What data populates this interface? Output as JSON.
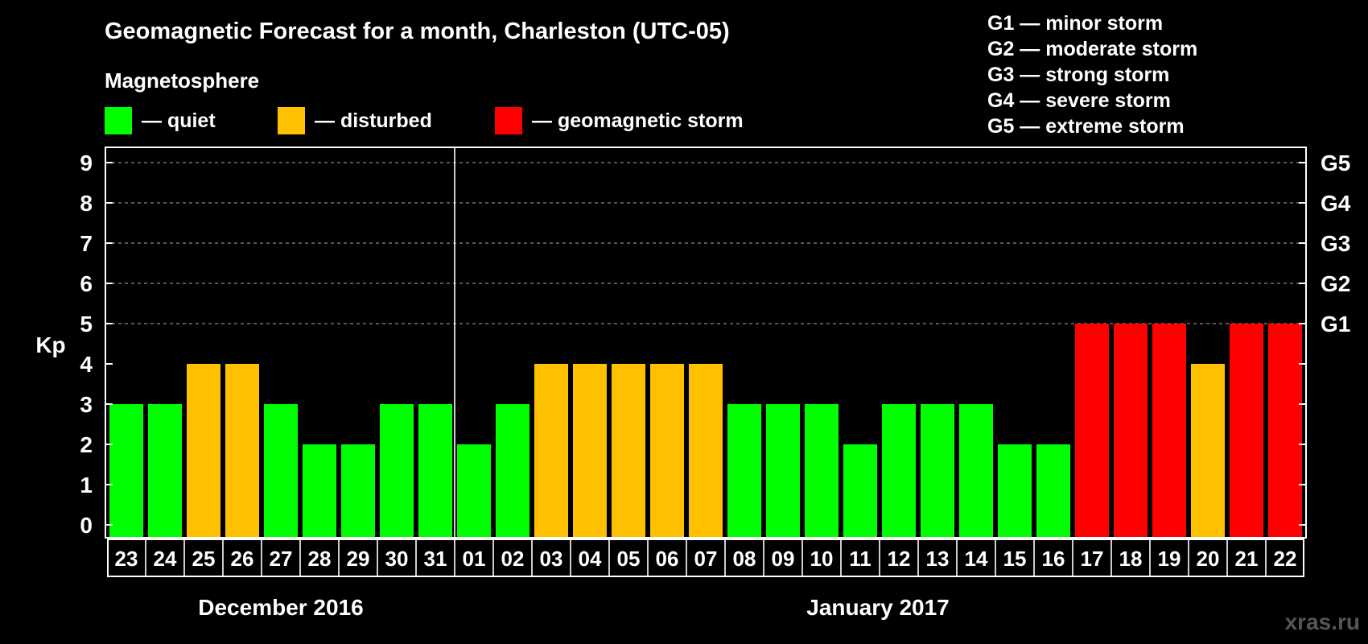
{
  "watermark": "xras.ru",
  "chart_data": {
    "type": "bar",
    "title": "Geomagnetic Forecast for a month, Charleston (UTC-05)",
    "subtitle": "Magnetosphere",
    "ylabel": "Kp",
    "ylim": [
      0,
      9
    ],
    "yticks": [
      "0",
      "1",
      "2",
      "3",
      "4",
      "5",
      "6",
      "7",
      "8",
      "9"
    ],
    "grid": true,
    "status_legend": [
      {
        "key": "quiet",
        "label": "— quiet",
        "color": "#00ff00"
      },
      {
        "key": "disturbed",
        "label": "— disturbed",
        "color": "#ffc000"
      },
      {
        "key": "storm",
        "label": "— geomagnetic storm",
        "color": "#ff0000"
      }
    ],
    "storm_levels": [
      {
        "label": "G5",
        "kp": 9,
        "description": "G5 — extreme storm"
      },
      {
        "label": "G4",
        "kp": 8,
        "description": "G4 — severe storm"
      },
      {
        "label": "G3",
        "kp": 7,
        "description": "G3 — strong storm"
      },
      {
        "label": "G2",
        "kp": 6,
        "description": "G2 — moderate storm"
      },
      {
        "label": "G1",
        "kp": 5,
        "description": "G1 — minor storm"
      }
    ],
    "months": [
      {
        "label": "December 2016",
        "first_index": 0,
        "last_index": 8
      },
      {
        "label": "January 2017",
        "first_index": 9,
        "last_index": 30
      }
    ],
    "categories": [
      "23",
      "24",
      "25",
      "26",
      "27",
      "28",
      "29",
      "30",
      "31",
      "01",
      "02",
      "03",
      "04",
      "05",
      "06",
      "07",
      "08",
      "09",
      "10",
      "11",
      "12",
      "13",
      "14",
      "15",
      "16",
      "17",
      "18",
      "19",
      "20",
      "21",
      "22"
    ],
    "values": [
      3,
      3,
      4,
      4,
      3,
      2,
      2,
      3,
      3,
      2,
      3,
      4,
      4,
      4,
      4,
      4,
      3,
      3,
      3,
      2,
      3,
      3,
      3,
      2,
      2,
      5,
      5,
      5,
      4,
      5,
      5
    ],
    "status": [
      "quiet",
      "quiet",
      "disturbed",
      "disturbed",
      "quiet",
      "quiet",
      "quiet",
      "quiet",
      "quiet",
      "quiet",
      "quiet",
      "disturbed",
      "disturbed",
      "disturbed",
      "disturbed",
      "disturbed",
      "quiet",
      "quiet",
      "quiet",
      "quiet",
      "quiet",
      "quiet",
      "quiet",
      "quiet",
      "quiet",
      "storm",
      "storm",
      "storm",
      "disturbed",
      "storm",
      "storm"
    ]
  }
}
